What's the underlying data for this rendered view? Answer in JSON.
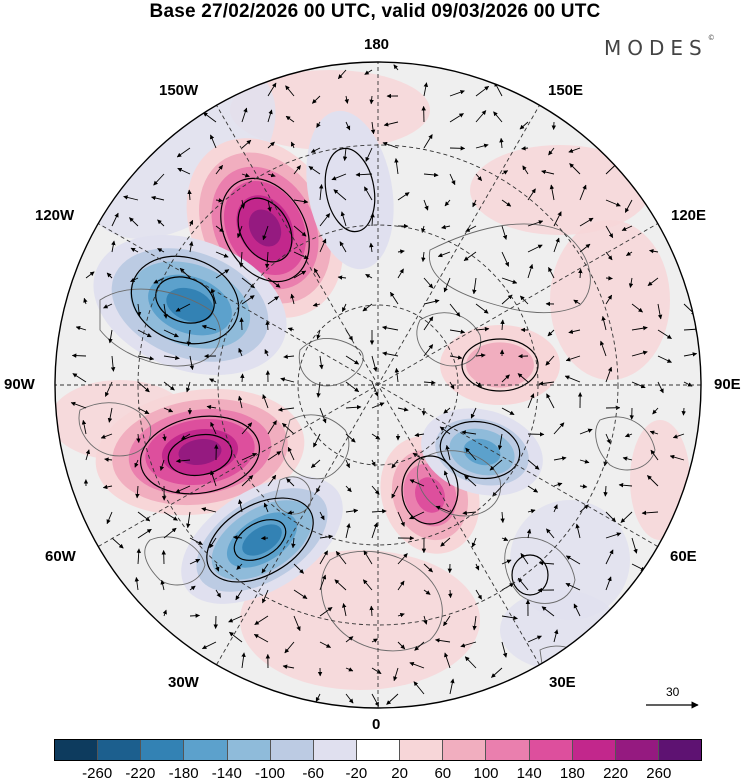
{
  "title": "Base 27/02/2026 00 UTC, valid 09/03/2026 00 UTC",
  "brand": "MODES",
  "brand_mark": "©",
  "longitude_labels": {
    "lon_180": "180",
    "lon_150w": "150W",
    "lon_150e": "150E",
    "lon_120w": "120W",
    "lon_120e": "120E",
    "lon_90w": "90W",
    "lon_90e": "90E",
    "lon_60w": "60W",
    "lon_60e": "60E",
    "lon_30w": "30W",
    "lon_30e": "30E",
    "lon_0": "0"
  },
  "reference_vector": {
    "label": "30"
  },
  "colorbar": {
    "colors": [
      "#0d3b5e",
      "#1c5f8e",
      "#3382b4",
      "#5ca1cc",
      "#8fbbda",
      "#bccbe3",
      "#e0e0ef",
      "#ffffff",
      "#f7d6d8",
      "#f1aebf",
      "#ea7fae",
      "#dd4f9d",
      "#c2278c",
      "#951a80",
      "#5e1272"
    ],
    "labels": [
      "-260",
      "-220",
      "-180",
      "-140",
      "-100",
      "-60",
      "-20",
      "20",
      "60",
      "100",
      "140",
      "180",
      "220",
      "260"
    ]
  },
  "anomaly_centers": [
    {
      "name": "pos-alaska",
      "sign": "+",
      "value": 260
    },
    {
      "name": "neg-north-pacific",
      "sign": "-",
      "value": -60
    },
    {
      "name": "neg-canada",
      "sign": "-",
      "value": -220
    },
    {
      "name": "pos-hudson",
      "sign": "+",
      "value": 260
    },
    {
      "name": "neg-atlantic",
      "sign": "-",
      "value": -220
    },
    {
      "name": "pos-scandinavia",
      "sign": "+",
      "value": 180
    },
    {
      "name": "neg-west-siberia",
      "sign": "-",
      "value": -180
    },
    {
      "name": "pos-siberia",
      "sign": "+",
      "value": 100
    }
  ]
}
